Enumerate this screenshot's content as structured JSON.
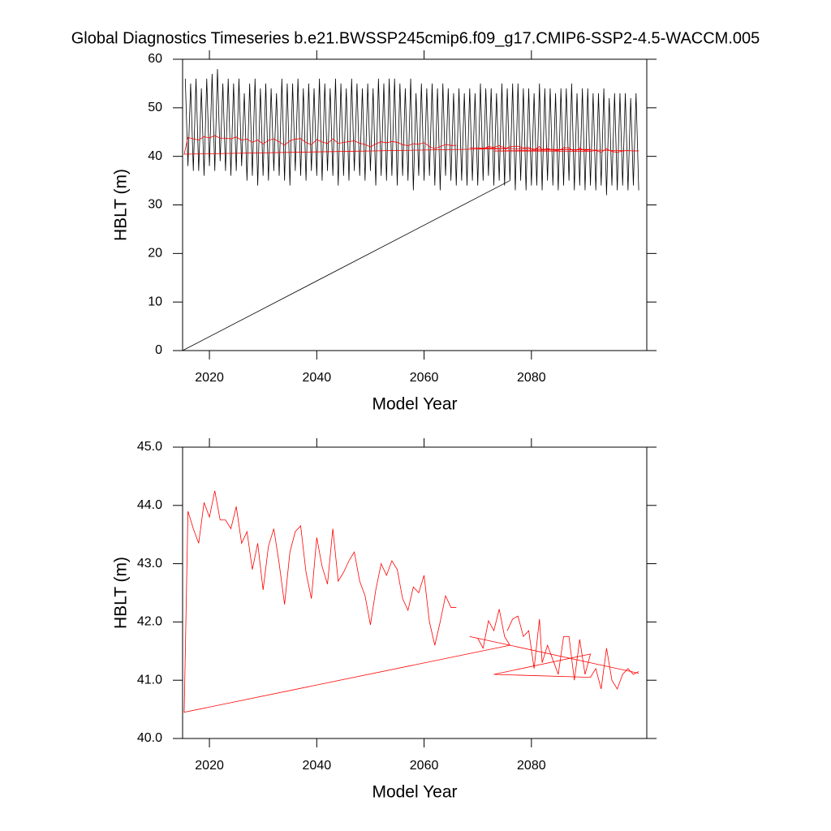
{
  "chart_data": [
    {
      "type": "line",
      "title": "Global Diagnostics Timeseries b.e21.BWSSP245cmip6.f09_g17.CMIP6-SSP2-4.5-WACCM.005",
      "x_label": "Model Year",
      "y_label": "HBLT (m)",
      "xlim": [
        2015,
        2101.5
      ],
      "xticks": [
        2020,
        2040,
        2060,
        2080
      ],
      "ylim": [
        0,
        60
      ],
      "yticks": [
        0,
        10,
        20,
        30,
        40,
        50,
        60
      ],
      "series": [
        {
          "color": "#000000",
          "x": [
            2015.0,
            2076.0,
            null,
            2015.5,
            2016.0,
            2016.5,
            2017.0,
            2017.5,
            2018.0,
            2018.5,
            2019.0,
            2019.5,
            2020.0,
            2020.5,
            2021.0,
            2021.5,
            2022.0,
            2022.5,
            2023.0,
            2023.5,
            2024.0,
            2024.5,
            2025.0,
            2025.5,
            2026.0,
            2026.5,
            2027.0,
            2027.5,
            2028.0,
            2028.5,
            2029.0,
            2029.5,
            2030.0,
            2030.5,
            2031.0,
            2031.5,
            2032.0,
            2032.5,
            2033.0,
            2033.5,
            2034.0,
            2034.5,
            2035.0,
            2035.5,
            2036.0,
            2036.5,
            2037.0,
            2037.5,
            2038.0,
            2038.5,
            2039.0,
            2039.5,
            2040.0,
            2040.5,
            2041.0,
            2041.5,
            2042.0,
            2042.5,
            2043.0,
            2043.5,
            2044.0,
            2044.5,
            2045.0,
            2045.5,
            2046.0,
            2046.5,
            2047.0,
            2047.5,
            2048.0,
            2048.5,
            2049.0,
            2049.5,
            2050.0,
            2050.5,
            2051.0,
            2051.5,
            2052.0,
            2052.5,
            2053.0,
            2053.5,
            2054.0,
            2054.5,
            2055.0,
            2055.5,
            2056.0,
            2056.5,
            2057.0,
            2057.5,
            2058.0,
            2058.5,
            2059.0,
            2059.5,
            2060.0,
            2060.5,
            2061.0,
            2061.5,
            2062.0,
            2062.5,
            2063.0,
            2063.5,
            2064.0,
            2064.5,
            2065.0,
            2065.5,
            2066.0,
            2066.5,
            2067.0,
            2067.5,
            2068.0,
            2068.5,
            2069.0,
            2069.5,
            2070.0,
            2070.5,
            2071.0,
            2071.5,
            2072.0,
            2072.5,
            2073.0,
            2073.5,
            2074.0,
            2074.5,
            2075.0,
            2075.5,
            2076.0,
            2076.5,
            2077.0,
            2077.5,
            2078.0,
            2078.5,
            2079.0,
            2079.5,
            2080.0,
            2080.5,
            2081.0,
            2081.5,
            2082.0,
            2082.5,
            2083.0,
            2083.5,
            2084.0,
            2084.5,
            2085.0,
            2085.5,
            2086.0,
            2086.5,
            2087.0,
            2087.5,
            2088.0,
            2088.5,
            2089.0,
            2089.5,
            2090.0,
            2090.5,
            2091.0,
            2091.5,
            2092.0,
            2092.5,
            2093.0,
            2093.5,
            2094.0,
            2094.5,
            2095.0,
            2095.5,
            2096.0,
            2096.5,
            2097.0,
            2097.5,
            2098.0,
            2098.5,
            2099.0,
            2099.5,
            2100.0
          ],
          "values": [
            0,
            35,
            null,
            56,
            38,
            55,
            37,
            56,
            37,
            54,
            36,
            56,
            38,
            57,
            37,
            58,
            39,
            55,
            37,
            56,
            36,
            55,
            37,
            56,
            38,
            53,
            35,
            55,
            36,
            56,
            34,
            54,
            36,
            55,
            35,
            54,
            37,
            53,
            36,
            56,
            35,
            55,
            34,
            55,
            37,
            56,
            36,
            54,
            35,
            55,
            37,
            54,
            36,
            56,
            35,
            55,
            37,
            54,
            36,
            56,
            34,
            55,
            36,
            54,
            35,
            56,
            37,
            55,
            36,
            54,
            35,
            55,
            37,
            54,
            34,
            56,
            36,
            55,
            35,
            56,
            36,
            56,
            34,
            55,
            36,
            54,
            35,
            56,
            33,
            53,
            36,
            55,
            35,
            54,
            36,
            55,
            34,
            54,
            33,
            55,
            36,
            54,
            35,
            53,
            34,
            54,
            35,
            53,
            34,
            54,
            35,
            53,
            34,
            55,
            35,
            54,
            36,
            54,
            34,
            53,
            35,
            55,
            34,
            54,
            35,
            55,
            33,
            55,
            35,
            54,
            33,
            54,
            34,
            53,
            34,
            55,
            33,
            54,
            35,
            54,
            34,
            53,
            33,
            54,
            34,
            54,
            35,
            55,
            33,
            53,
            34,
            54,
            33,
            54,
            34,
            53,
            33,
            53,
            34,
            54,
            32,
            52,
            34,
            53,
            33,
            53,
            34,
            53,
            33,
            52,
            34,
            53,
            33
          ]
        },
        {
          "color": "#ff0000",
          "x": [
            2100.0,
            2068.5,
            2070.0,
            2071.0,
            2072.0,
            2073.0,
            2074.0,
            2075.0,
            2076.0,
            2015.3,
            2016.0,
            2017.0,
            2018.0,
            2019.0,
            2020.0,
            2021.0,
            2022.0,
            2023.0,
            2024.0,
            2025.0,
            2026.0,
            2027.0,
            2028.0,
            2029.0,
            2030.0,
            2031.0,
            2032.0,
            2033.0,
            2034.0,
            2035.0,
            2036.0,
            2037.0,
            2038.0,
            2039.0,
            2040.0,
            2041.0,
            2042.0,
            2043.0,
            2044.0,
            2045.0,
            2046.0,
            2047.0,
            2048.0,
            2049.0,
            2050.0,
            2051.0,
            2052.0,
            2053.0,
            2054.0,
            2055.0,
            2056.0,
            2057.0,
            2058.0,
            2059.0,
            2060.0,
            2061.0,
            2062.0,
            2063.0,
            2064.0,
            2065.0,
            2066.0,
            null,
            2075.5,
            2076.5,
            2077.5,
            2078.5,
            2079.5,
            2080.5,
            2081.5,
            2082.0,
            2083.0,
            2084.0,
            2085.0,
            2086.0,
            2087.0,
            2088.0,
            2089.0,
            2090.0,
            2091.0,
            2073.0,
            2091.0,
            2092.0,
            2093.0,
            2094.0,
            2095.0,
            2096.0,
            2097.0,
            2098.0,
            2099.0,
            2100.0
          ],
          "values": [
            41.12,
            41.75,
            41.72,
            41.55,
            42.02,
            41.85,
            42.22,
            41.75,
            41.6,
            40.45,
            43.9,
            43.6,
            43.35,
            44.05,
            43.8,
            44.25,
            43.75,
            43.75,
            43.6,
            43.98,
            43.35,
            43.55,
            42.9,
            43.35,
            42.55,
            43.3,
            43.6,
            43.0,
            42.3,
            43.2,
            43.55,
            43.65,
            42.85,
            42.4,
            43.45,
            42.95,
            42.65,
            43.6,
            42.7,
            42.85,
            43.05,
            43.2,
            42.7,
            42.45,
            41.95,
            42.55,
            43.0,
            42.8,
            43.05,
            42.9,
            42.4,
            42.2,
            42.6,
            42.5,
            42.8,
            42.0,
            41.6,
            42.0,
            42.45,
            42.25,
            42.25,
            null,
            41.85,
            42.05,
            42.1,
            41.75,
            41.85,
            41.2,
            42.05,
            41.3,
            41.6,
            41.35,
            41.1,
            41.75,
            41.75,
            41.0,
            41.7,
            41.1,
            41.45,
            41.1,
            41.05,
            41.2,
            40.85,
            41.55,
            41.0,
            40.85,
            41.1,
            41.2,
            41.1,
            41.15
          ]
        }
      ]
    },
    {
      "type": "line",
      "x_label": "Model Year",
      "y_label": "HBLT (m)",
      "xlim": [
        2015,
        2101.5
      ],
      "xticks": [
        2020,
        2040,
        2060,
        2080
      ],
      "ylim": [
        40,
        45
      ],
      "yticks": [
        {
          "value": 40,
          "label": "40.0"
        },
        {
          "value": 41,
          "label": "41.0"
        },
        {
          "value": 42,
          "label": "42.0"
        },
        {
          "value": 43,
          "label": "43.0"
        },
        {
          "value": 44,
          "label": "44.0"
        },
        {
          "value": 45,
          "label": "45.0"
        }
      ],
      "series": [
        {
          "color": "#ff0000",
          "x": [
            2100.0,
            2068.5,
            2070.0,
            2071.0,
            2072.0,
            2073.0,
            2074.0,
            2075.0,
            2076.0,
            2015.3,
            2016.0,
            2017.0,
            2018.0,
            2019.0,
            2020.0,
            2021.0,
            2022.0,
            2023.0,
            2024.0,
            2025.0,
            2026.0,
            2027.0,
            2028.0,
            2029.0,
            2030.0,
            2031.0,
            2032.0,
            2033.0,
            2034.0,
            2035.0,
            2036.0,
            2037.0,
            2038.0,
            2039.0,
            2040.0,
            2041.0,
            2042.0,
            2043.0,
            2044.0,
            2045.0,
            2046.0,
            2047.0,
            2048.0,
            2049.0,
            2050.0,
            2051.0,
            2052.0,
            2053.0,
            2054.0,
            2055.0,
            2056.0,
            2057.0,
            2058.0,
            2059.0,
            2060.0,
            2061.0,
            2062.0,
            2063.0,
            2064.0,
            2065.0,
            2066.0,
            null,
            2075.5,
            2076.5,
            2077.5,
            2078.5,
            2079.5,
            2080.5,
            2081.5,
            2082.0,
            2083.0,
            2084.0,
            2085.0,
            2086.0,
            2087.0,
            2088.0,
            2089.0,
            2090.0,
            2091.0,
            2073.0,
            2091.0,
            2092.0,
            2093.0,
            2094.0,
            2095.0,
            2096.0,
            2097.0,
            2098.0,
            2099.0,
            2100.0
          ],
          "values": [
            41.12,
            41.75,
            41.72,
            41.55,
            42.02,
            41.85,
            42.22,
            41.75,
            41.6,
            40.45,
            43.9,
            43.6,
            43.35,
            44.05,
            43.8,
            44.25,
            43.75,
            43.75,
            43.6,
            43.98,
            43.35,
            43.55,
            42.9,
            43.35,
            42.55,
            43.3,
            43.6,
            43.0,
            42.3,
            43.2,
            43.55,
            43.65,
            42.85,
            42.4,
            43.45,
            42.95,
            42.65,
            43.6,
            42.7,
            42.85,
            43.05,
            43.2,
            42.7,
            42.45,
            41.95,
            42.55,
            43.0,
            42.8,
            43.05,
            42.9,
            42.4,
            42.2,
            42.6,
            42.5,
            42.8,
            42.0,
            41.6,
            42.0,
            42.45,
            42.25,
            42.25,
            null,
            41.85,
            42.05,
            42.1,
            41.75,
            41.85,
            41.2,
            42.05,
            41.3,
            41.6,
            41.35,
            41.1,
            41.75,
            41.75,
            41.0,
            41.7,
            41.1,
            41.45,
            41.1,
            41.05,
            41.2,
            40.85,
            41.55,
            41.0,
            40.85,
            41.1,
            41.2,
            41.1,
            41.15
          ]
        }
      ]
    }
  ]
}
